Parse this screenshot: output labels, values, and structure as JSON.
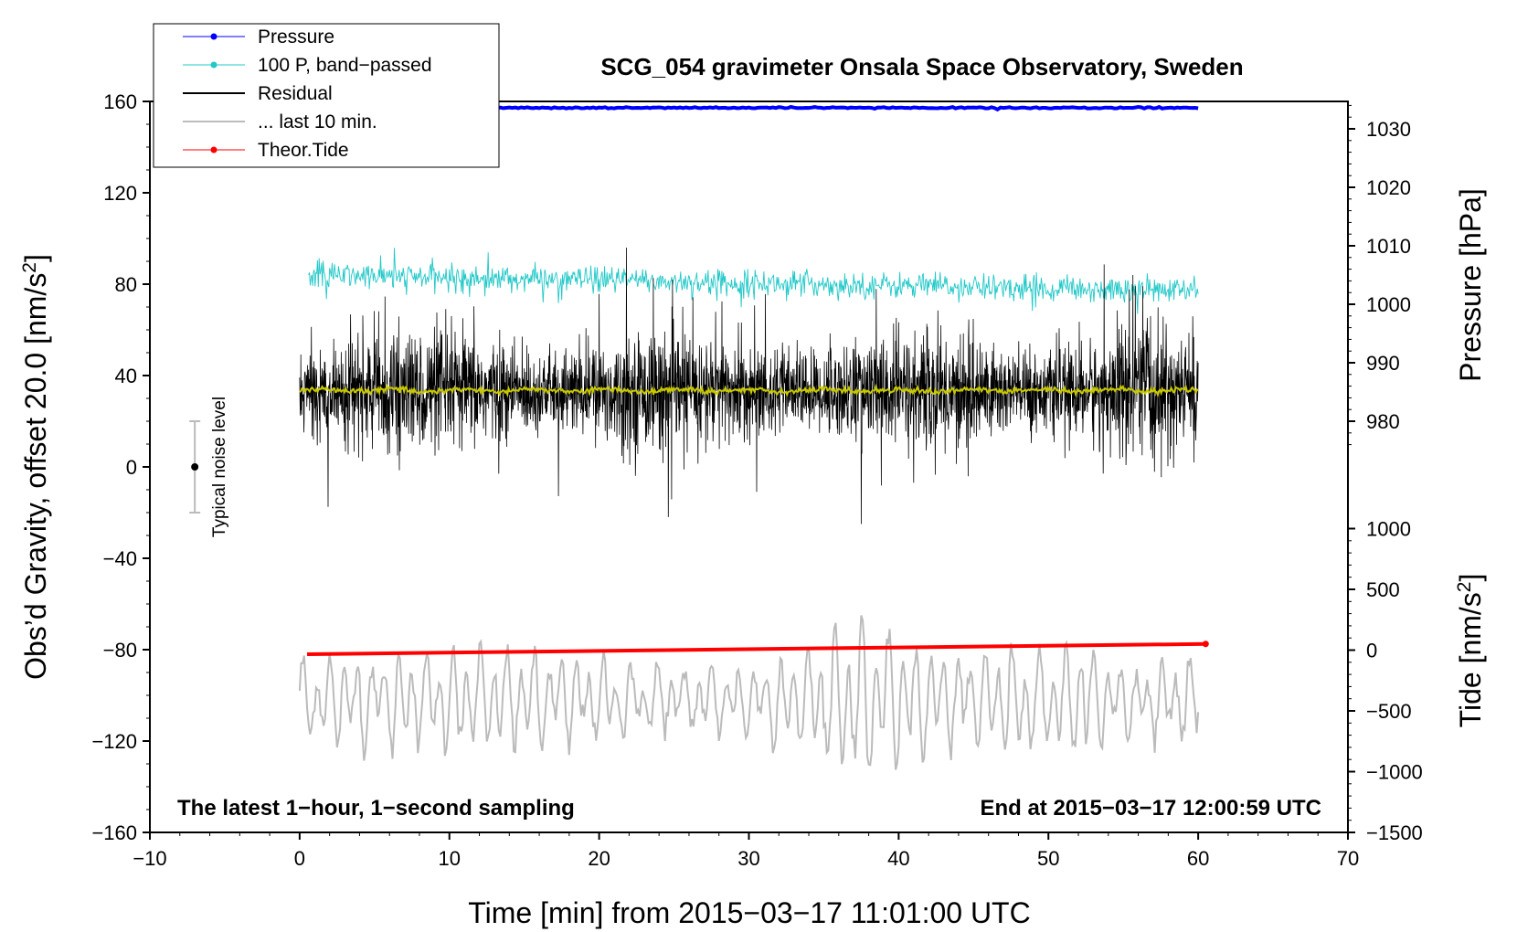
{
  "chart_data": {
    "type": "line",
    "title": "SCG_054 gravimeter Onsala Space Observatory, Sweden",
    "xlabel": "Time [min] from 2015−03−17 11:01:00 UTC",
    "ylabel_left": "Obs’d Gravity, offset 20.0 [nm/s",
    "ylabel_left_sup": "2",
    "ylabel_left_end": "]",
    "ylabel_pressure": "Pressure [hPa]",
    "ylabel_tide": "Tide [nm/s",
    "ylabel_tide_sup": "2",
    "ylabel_tide_end": "]",
    "xlim": [
      -10,
      70
    ],
    "ylim": [
      -160,
      160
    ],
    "x_ticks": [
      -10,
      0,
      10,
      20,
      30,
      40,
      50,
      60,
      70
    ],
    "x_tick_labels": [
      "−10",
      "0",
      "10",
      "20",
      "30",
      "40",
      "50",
      "60",
      "70"
    ],
    "y_ticks": [
      -160,
      -120,
      -80,
      -40,
      0,
      40,
      80,
      120,
      160
    ],
    "y_tick_labels": [
      "−160",
      "−120",
      "−80",
      "−40",
      "0",
      "40",
      "80",
      "120",
      "160"
    ],
    "pressure_axis": {
      "ticks": [
        980,
        990,
        1000,
        1010,
        1020,
        1030
      ],
      "tick_labels": [
        "980",
        "990",
        "1000",
        "1010",
        "1020",
        "1030"
      ],
      "gravity_at_980": 20,
      "gravity_at_1030": 148
    },
    "tide_axis": {
      "ticks": [
        -1500,
        -1000,
        -500,
        0,
        500,
        1000
      ],
      "tick_labels": [
        "−1500",
        "−1000",
        "−500",
        "0",
        "500",
        "1000"
      ],
      "gravity_at_minus1500": -160,
      "gravity_at_1000": -27
    },
    "legend": [
      {
        "label": "Pressure",
        "color": "#0000ff",
        "marker": true
      },
      {
        "label": "100 P, band−passed",
        "color": "#22c8c8",
        "marker": true
      },
      {
        "label": "Residual",
        "color": "#000000",
        "marker": false
      },
      {
        "label": "... last 10 min.",
        "color": "#bbbbbb",
        "marker": false
      },
      {
        "label": "Theor.Tide",
        "color": "#ff0000",
        "marker": true
      }
    ],
    "annotations": {
      "left": "The latest 1−hour, 1−second sampling",
      "right": "End at 2015−03−17 12:00:59 UTC",
      "noise_label": "Typical noise level"
    },
    "noise_bar": {
      "x": -7,
      "y_center": 0,
      "y_low": -20,
      "y_high": 20
    },
    "series": [
      {
        "name": "Pressure",
        "color": "#0000ff",
        "x_range": [
          0,
          60
        ],
        "gravity_value": 157.2
      },
      {
        "name": "100 P, band−passed",
        "color": "#22c8c8",
        "x_range": [
          0.6,
          60
        ],
        "gravity_start": 84,
        "gravity_end": 77,
        "amplitude": 5
      },
      {
        "name": "Residual",
        "color": "#000000",
        "x_range": [
          0,
          60
        ],
        "gravity_mean": 33,
        "amplitude": 14
      },
      {
        "name": "Residual smoothed",
        "color": "#c8c800",
        "x_range": [
          0,
          60
        ],
        "gravity_mean": 33.5
      },
      {
        "name": "... last 10 min.",
        "color": "#bbbbbb",
        "x_range": [
          0,
          60
        ],
        "gravity_mean": -102
      },
      {
        "name": "Theor.Tide",
        "color": "#ff0000",
        "x_range": [
          0.5,
          60.5
        ],
        "gravity_start": -82,
        "gravity_end": -77.5
      }
    ]
  }
}
